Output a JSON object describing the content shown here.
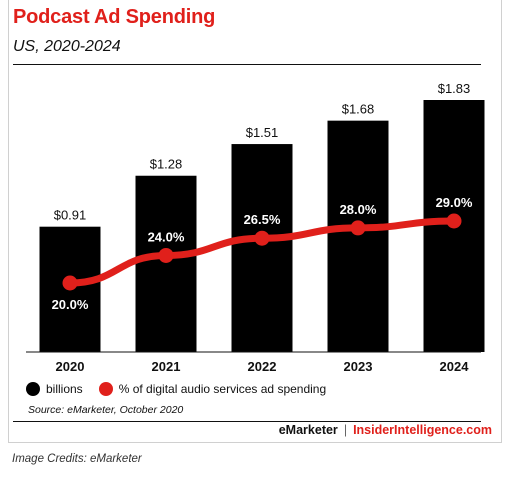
{
  "header": {
    "title": "Podcast Ad Spending",
    "subtitle": "US, 2020-2024"
  },
  "colors": {
    "bar": "#000000",
    "line": "#e0201b",
    "accent": "#e0201b"
  },
  "chart_data": {
    "type": "bar",
    "categories": [
      "2020",
      "2021",
      "2022",
      "2023",
      "2024"
    ],
    "series": [
      {
        "name": "billions",
        "type": "bar",
        "values": [
          0.91,
          1.28,
          1.51,
          1.68,
          1.83
        ],
        "labels": [
          "$0.91",
          "$1.28",
          "$1.51",
          "$1.68",
          "$1.83"
        ]
      },
      {
        "name": "% of digital audio services ad spending",
        "type": "line",
        "values": [
          20.0,
          24.0,
          26.5,
          28.0,
          29.0
        ],
        "labels": [
          "20.0%",
          "24.0%",
          "26.5%",
          "28.0%",
          "29.0%"
        ]
      }
    ],
    "title": "Podcast Ad Spending",
    "subtitle": "US, 2020-2024",
    "grid": false,
    "legend": "bottom-left"
  },
  "legend": {
    "items": [
      {
        "label": "billions"
      },
      {
        "label": "% of digital audio services ad spending"
      }
    ]
  },
  "footer": {
    "source": "Source: eMarketer, October 2020",
    "brand_left": "eMarketer",
    "separator": "|",
    "brand_right": "InsiderIntelligence.com"
  },
  "credits": {
    "text": "Image Credits: eMarketer"
  }
}
